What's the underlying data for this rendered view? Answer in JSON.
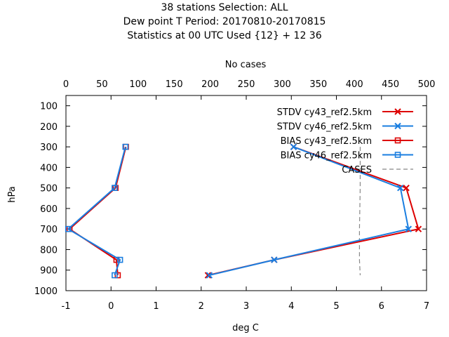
{
  "chart_data": {
    "type": "line",
    "title_lines": [
      "38 stations Selection: ALL",
      "Dew point T  Period: 20170810-20170815",
      "Statistics at 00 UTC  Used {12} + 12 36"
    ],
    "xlabel": "deg C",
    "ylabel": "hPa",
    "x2label": "No cases",
    "xlim": [
      -1,
      7
    ],
    "x2lim": [
      0,
      500
    ],
    "ylim": [
      1000,
      50
    ],
    "y_inverted": true,
    "xticks": [
      "-1",
      "0",
      "1",
      "2",
      "3",
      "4",
      "5",
      "6",
      "7"
    ],
    "x2ticks": [
      "0",
      "50",
      "100",
      "150",
      "200",
      "250",
      "300",
      "350",
      "400",
      "450",
      "500"
    ],
    "yticks": [
      "100",
      "200",
      "300",
      "400",
      "500",
      "600",
      "700",
      "800",
      "900",
      "1000"
    ],
    "legend_position": "top-right",
    "series": [
      {
        "name": "STDV cy43_ref2.5km",
        "color": "#dd0000",
        "marker": "x",
        "points": [
          [
            4.05,
            300
          ],
          [
            6.55,
            500
          ],
          [
            6.82,
            700
          ],
          [
            3.62,
            850
          ],
          [
            2.15,
            925
          ]
        ]
      },
      {
        "name": "STDV cy46_ref2.5km",
        "color": "#1a7ee0",
        "marker": "x",
        "points": [
          [
            4.05,
            300
          ],
          [
            6.42,
            500
          ],
          [
            6.6,
            700
          ],
          [
            3.62,
            850
          ],
          [
            2.18,
            925
          ]
        ]
      },
      {
        "name": "BIAS cy43_ref2.5km",
        "color": "#dd0000",
        "marker": "square",
        "points": [
          [
            0.33,
            300
          ],
          [
            0.1,
            500
          ],
          [
            -0.92,
            700
          ],
          [
            0.12,
            850
          ],
          [
            0.15,
            925
          ]
        ]
      },
      {
        "name": "BIAS cy46_ref2.5km",
        "color": "#1a7ee0",
        "marker": "square",
        "points": [
          [
            0.32,
            300
          ],
          [
            0.08,
            500
          ],
          [
            -0.95,
            700
          ],
          [
            0.2,
            850
          ],
          [
            0.08,
            925
          ]
        ]
      },
      {
        "name": "CASES",
        "color": "#888888",
        "marker": "none",
        "dashed": true,
        "axis": "x2",
        "points": [
          [
            408,
            300
          ],
          [
            408,
            500
          ],
          [
            407,
            700
          ],
          [
            407,
            850
          ],
          [
            408,
            925
          ]
        ]
      }
    ]
  }
}
